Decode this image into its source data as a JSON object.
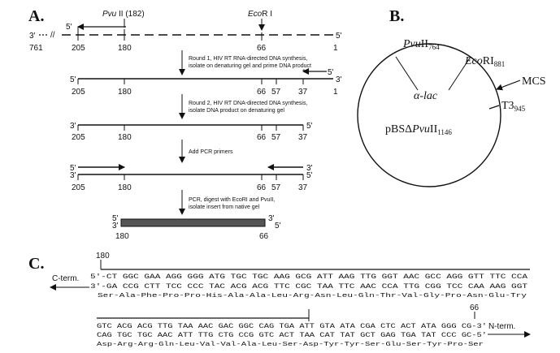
{
  "panel_a": {
    "label": "A.",
    "pvu_label": "Pvu",
    "pvu_suffix": " II (182)",
    "eco_label": "Eco",
    "eco_suffix": "R I",
    "row1": {
      "end_left": "3'",
      "break_mark": "//",
      "prime_left": "5'",
      "end_right": "5'",
      "nums": [
        "761",
        "205",
        "180",
        "66",
        "1"
      ]
    },
    "step1": [
      "Round 1, HIV RT RNA-directed DNA synthesis,",
      "isolate on denaturing gel and prime DNA product"
    ],
    "row2": {
      "end_left": "5'",
      "end_right": "3'",
      "primer_end": "5'",
      "nums": [
        "205",
        "180",
        "66",
        "57",
        "37",
        "1"
      ]
    },
    "step2": [
      "Round 2, HIV RT DNA-directed DNA synthesis,",
      "isolate DNA product on denaturing gel"
    ],
    "row3": {
      "end_left": "3'",
      "end_right": "5'",
      "nums": [
        "205",
        "180",
        "66",
        "57",
        "37"
      ]
    },
    "step3": [
      "Add PCR primers"
    ],
    "row4": {
      "top_left": "5'",
      "bottom_left": "3'",
      "top_right": "3'",
      "bottom_right": "5'",
      "nums": [
        "205",
        "180",
        "66",
        "57",
        "37"
      ]
    },
    "step4": [
      "PCR, digest with EcoRI and PvuII,",
      "isolate insert from native gel"
    ],
    "row5": {
      "top_left": "5'",
      "bottom_left": "3'",
      "top_right": "3'",
      "bottom_right": "5'",
      "nums": [
        "180",
        "66"
      ]
    }
  },
  "panel_b": {
    "label": "B.",
    "pvu_name": "Pvu",
    "pvu_site": "II",
    "pvu_pos": "764",
    "eco_name": "Eco",
    "eco_site": "RI",
    "eco_pos": "881",
    "alac": "α-lac",
    "mcs": "MCS",
    "t3": "T3",
    "t3_pos": "945",
    "plasmid_prefix": "pBSΔ",
    "plasmid_name": "Pvu",
    "plasmid_site": "II",
    "plasmid_pos": "1146"
  },
  "panel_c": {
    "label": "C.",
    "start_num": "180",
    "cterm": "C-term.",
    "block1": {
      "top": "5'-CT GGC GAA AGG GGG ATG TGC TGC AAG GCG ATT AAG TTG GGT AAC GCC AGG GTT TTC CCA",
      "bottom": "3'-GA CCG CTT TCC CCC TAC ACG ACG TTC CGC TAA TTC AAC CCA TTG CGG TCC CAA AAG GGT",
      "aa": "Ser-Ala-Phe-Pro-Pro-His-Ala-Ala-Leu-Arg-Asn-Leu-Gln-Thr-Val-Gly-Pro-Asn-Glu-Try"
    },
    "end_num": "66",
    "nterm": "N-term.",
    "block2": {
      "top": "GTC ACG ACG TTG TAA AAC GAC GGC CAG TGA ATT GTA ATA CGA CTC ACT ATA GGG CG-3'",
      "bottom": "CAG TGC TGC AAC ATT TTG CTG CCG GTC ACT TAA CAT TAT GCT GAG TGA TAT CCC GC-5'",
      "aa": "Asp-Arg-Arg-Gln-Leu-Val-Val-Ala-Leu-Ser-Asp-Tyr-Tyr-Ser-Glu-Ser-Tyr-Pro-Ser"
    }
  }
}
